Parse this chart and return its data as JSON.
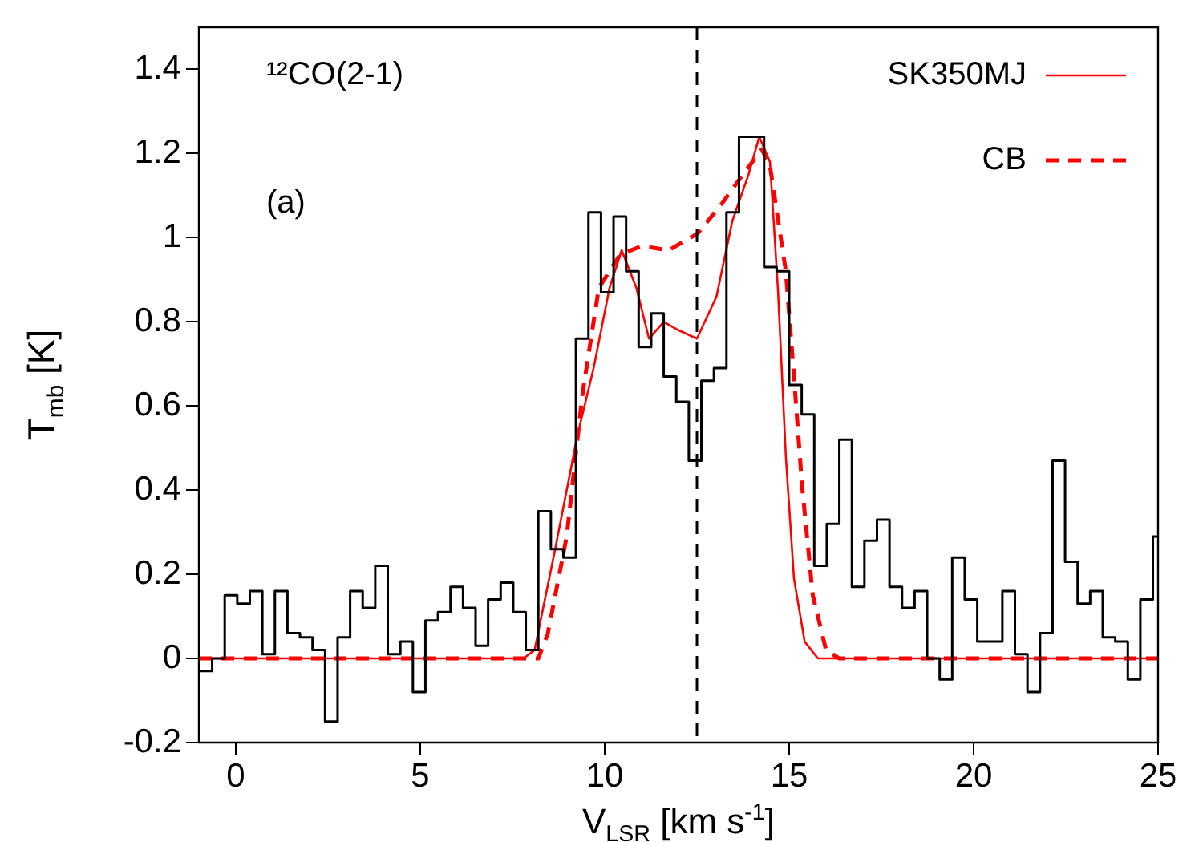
{
  "chart_data": {
    "type": "line",
    "xlabel": "V$_{LSR}$ [km s$^{-1}$]",
    "ylabel": "T$_{mb}$ [K]",
    "annotations": [
      "¹²CO(2-1)",
      "(a)"
    ],
    "xlim": [
      -1,
      25
    ],
    "xticks": [
      0,
      5,
      10,
      15,
      20,
      25
    ],
    "ylim": [
      -0.2,
      1.5
    ],
    "yticks": [
      -0.2,
      0,
      0.2,
      0.4,
      0.6,
      0.8,
      1,
      1.2,
      1.4
    ],
    "grid": false,
    "legend": "top right",
    "series": [
      {
        "type": "step",
        "color": "#000000",
        "line_style": "solid",
        "x": [
          -1,
          -0.64,
          -0.3,
          0.04,
          0.38,
          0.72,
          1.06,
          1.4,
          1.74,
          2.08,
          2.42,
          2.76,
          3.1,
          3.44,
          3.78,
          4.12,
          4.46,
          4.8,
          5.14,
          5.48,
          5.82,
          6.16,
          6.5,
          6.84,
          7.18,
          7.52,
          7.86,
          8.2,
          8.54,
          8.88,
          9.22,
          9.56,
          9.9,
          10.24,
          10.58,
          10.92,
          11.26,
          11.6,
          11.94,
          12.28,
          12.62,
          12.96,
          13.3,
          13.64,
          13.98,
          14.32,
          14.66,
          15.0,
          15.34,
          15.68,
          16.02,
          16.36,
          16.7,
          17.04,
          17.38,
          17.72,
          18.06,
          18.4,
          18.74,
          19.08,
          19.42,
          19.76,
          20.1,
          20.44,
          20.78,
          21.12,
          21.46,
          21.8,
          22.14,
          22.48,
          22.82,
          23.16,
          23.5,
          23.84,
          24.18,
          24.52,
          24.86,
          25
        ],
        "values": [
          -0.03,
          0.0,
          0.15,
          0.13,
          0.16,
          0.01,
          0.16,
          0.06,
          0.05,
          0.02,
          -0.15,
          0.05,
          0.16,
          0.12,
          0.22,
          0.01,
          0.04,
          -0.08,
          0.09,
          0.11,
          0.17,
          0.12,
          0.03,
          0.14,
          0.18,
          0.11,
          0.02,
          0.35,
          0.26,
          0.24,
          0.76,
          1.06,
          0.87,
          1.05,
          0.92,
          0.74,
          0.82,
          0.67,
          0.61,
          0.47,
          0.66,
          0.69,
          1.06,
          1.24,
          1.24,
          0.93,
          0.92,
          0.65,
          0.58,
          0.22,
          0.32,
          0.52,
          0.17,
          0.28,
          0.33,
          0.17,
          0.12,
          0.16,
          0.0,
          -0.05,
          0.24,
          0.14,
          0.04,
          0.04,
          0.16,
          0.01,
          -0.08,
          0.06,
          0.47,
          0.23,
          0.13,
          0.16,
          0.05,
          0.04,
          -0.05,
          0.14,
          0.29,
          0.29
        ]
      },
      {
        "name": "SK350MJ",
        "color": "#ff0000",
        "line_style": "solid",
        "x": [
          -1,
          7.8,
          8.1,
          8.68,
          9.26,
          9.7,
          10.13,
          10.46,
          10.86,
          11.2,
          11.6,
          12.0,
          12.5,
          13.03,
          13.46,
          13.9,
          14.19,
          14.48,
          14.7,
          14.91,
          15.13,
          15.42,
          15.78,
          16.2,
          25
        ],
        "values": [
          0,
          0,
          0.02,
          0.27,
          0.53,
          0.69,
          0.88,
          0.97,
          0.88,
          0.76,
          0.8,
          0.78,
          0.76,
          0.86,
          1.04,
          1.15,
          1.24,
          1.18,
          0.87,
          0.48,
          0.19,
          0.04,
          0,
          0,
          0
        ]
      },
      {
        "name": "CB",
        "color": "#ff0000",
        "line_style": "dashed",
        "x": [
          -1,
          8.2,
          8.46,
          8.97,
          9.4,
          9.84,
          10.42,
          11.0,
          11.73,
          12.52,
          13.17,
          13.83,
          14.26,
          14.48,
          14.91,
          15.13,
          15.35,
          15.64,
          16.0,
          16.36,
          25
        ],
        "values": [
          0,
          0,
          0.06,
          0.29,
          0.63,
          0.88,
          0.96,
          0.98,
          0.97,
          1.01,
          1.08,
          1.16,
          1.21,
          1.17,
          0.92,
          0.67,
          0.41,
          0.15,
          0.02,
          0,
          0
        ]
      }
    ],
    "ref_lines": [
      {
        "axis": "x",
        "value": 12.5,
        "color": "#000000",
        "line_style": "dashed"
      }
    ]
  }
}
